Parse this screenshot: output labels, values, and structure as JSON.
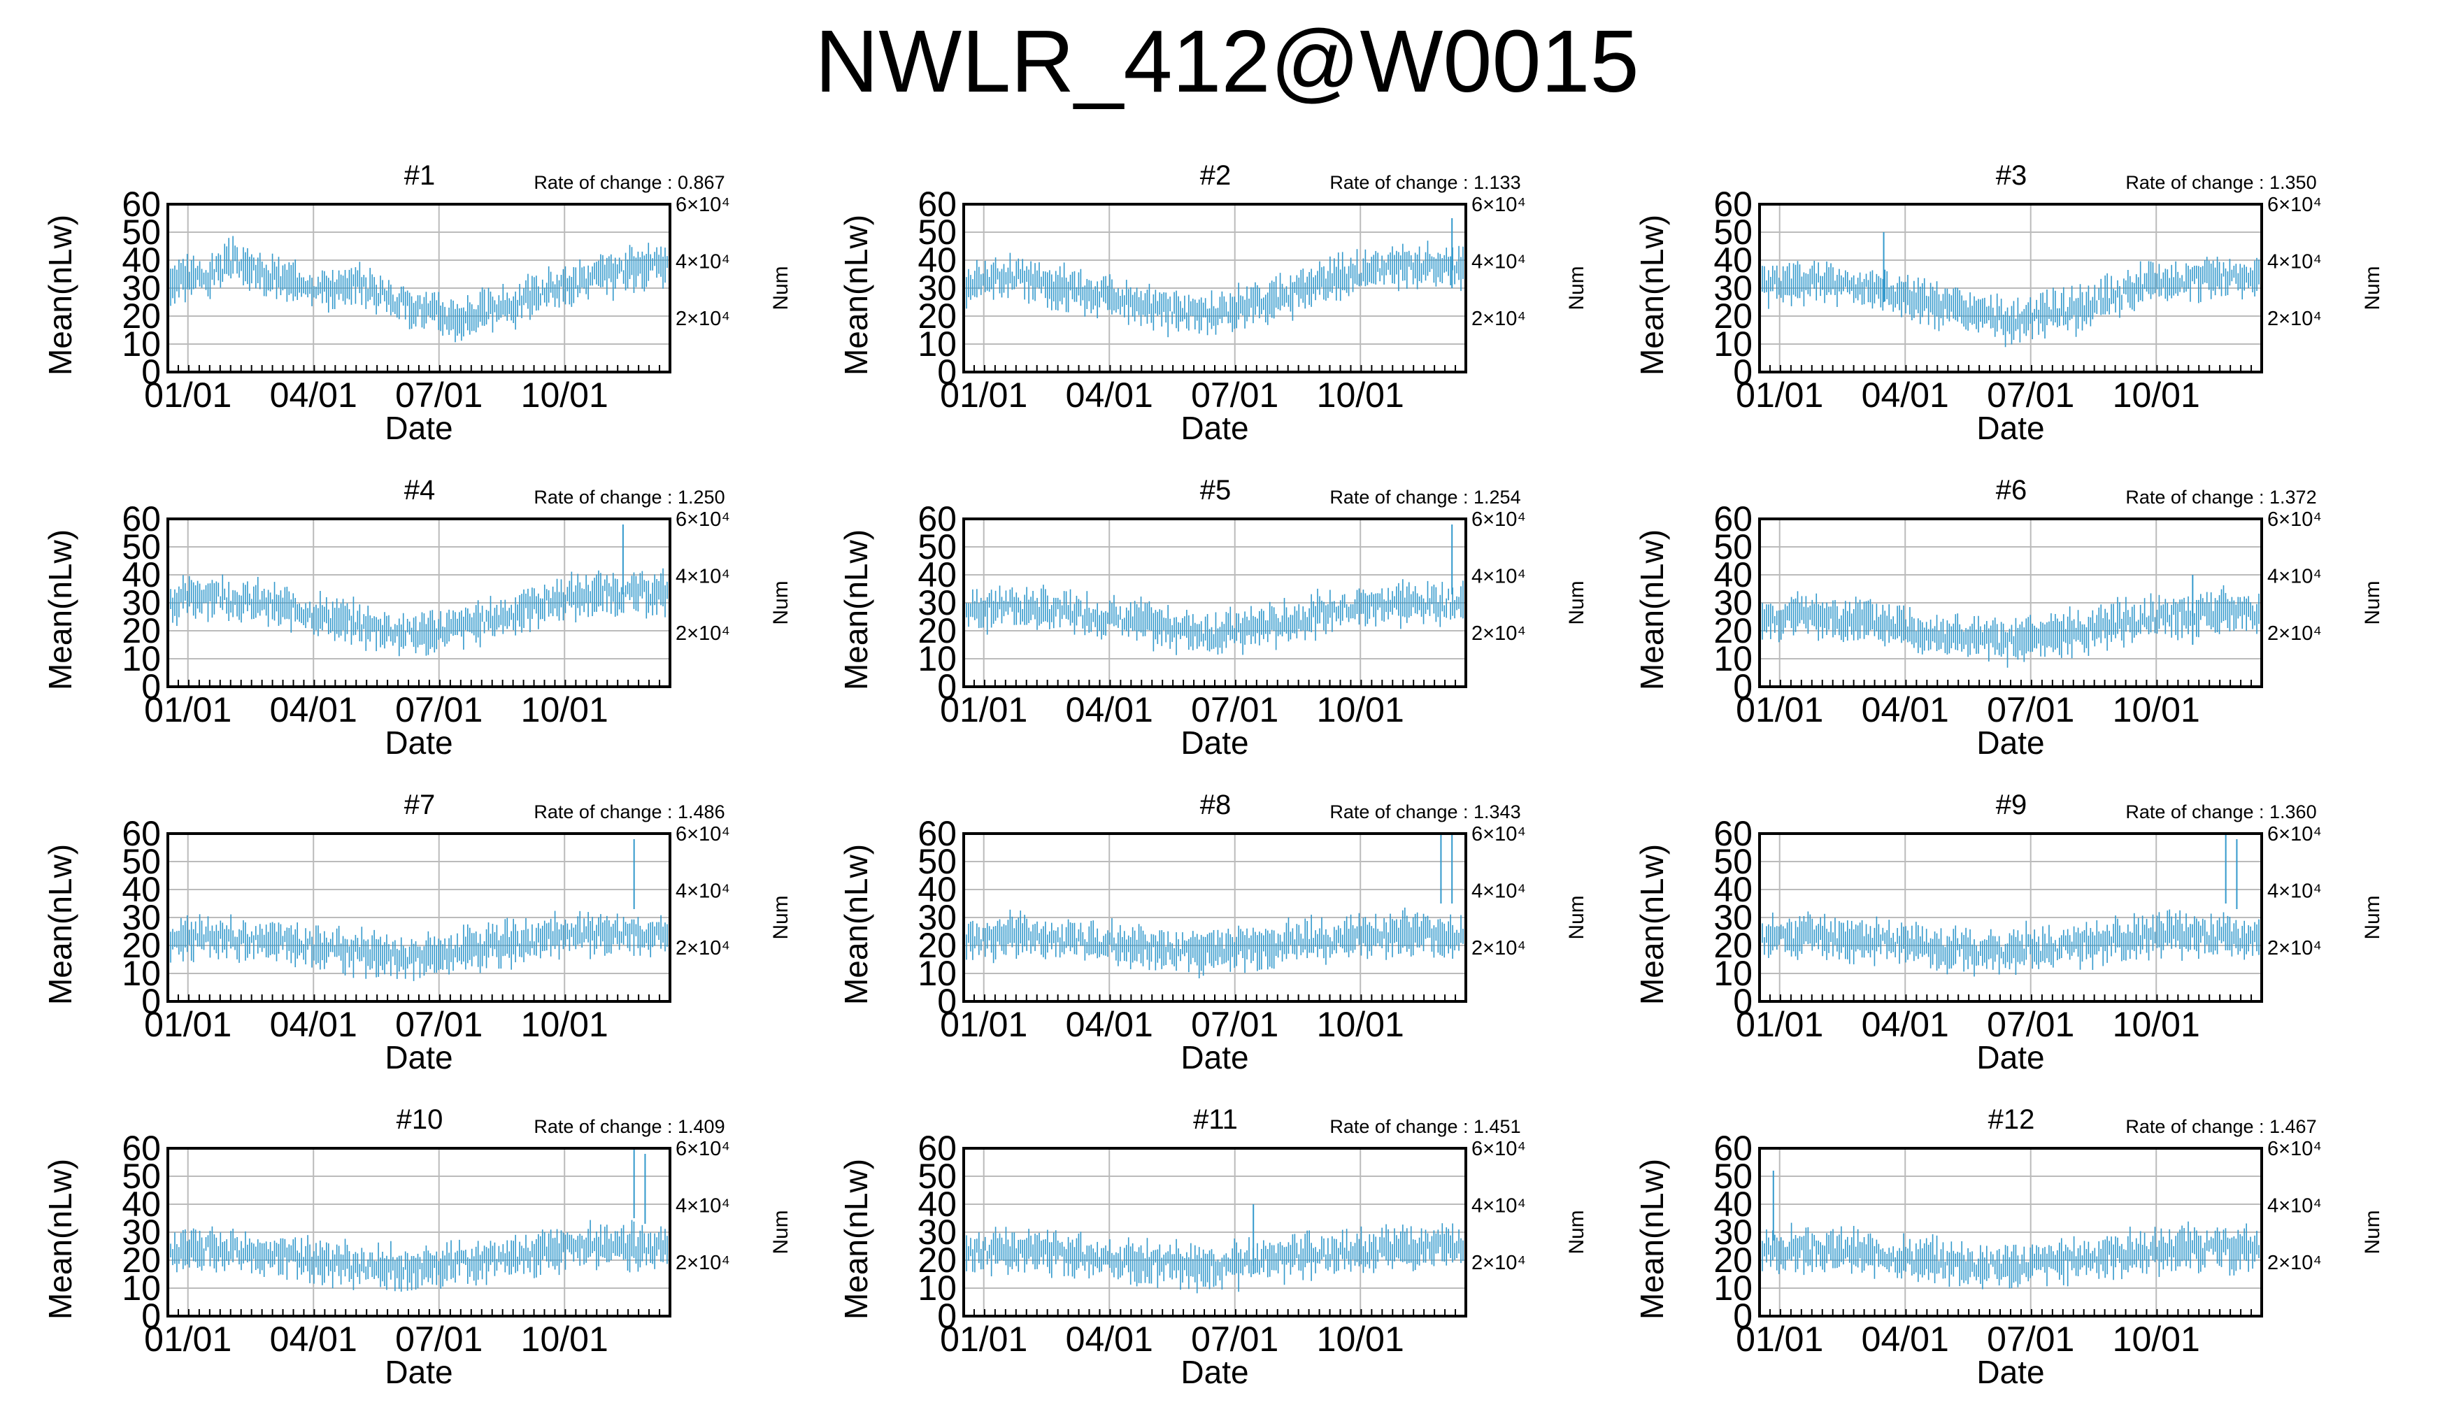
{
  "title": "NWLR_412@W0015",
  "colors": {
    "series": "#3399cc",
    "grid": "#bbbbbb",
    "axis": "#000000"
  },
  "chart_data": [
    {
      "type": "line",
      "title": "#1",
      "rate_label": "Rate of change : 0.867",
      "xlabel": "Date",
      "ylabel": "Mean(nLw)",
      "y2label": "Num",
      "x_ticks": [
        "01/01",
        "04/01",
        "07/01",
        "10/01"
      ],
      "y_ticks": [
        "0",
        "10",
        "20",
        "30",
        "40",
        "50",
        "60"
      ],
      "y2_ticks": [
        "2×10⁴",
        "4×10⁴",
        "6×10⁴"
      ],
      "ylim": [
        0,
        60
      ],
      "grid": true,
      "series": [
        {
          "values": [
            32,
            34,
            35,
            33,
            36,
            38,
            40,
            37,
            35,
            34,
            33,
            32,
            33,
            31,
            30,
            30,
            29,
            31,
            30,
            28,
            26,
            25,
            24,
            22,
            21,
            20,
            19,
            20,
            21,
            22,
            23,
            24,
            26,
            27,
            29,
            30,
            31,
            32,
            33,
            34,
            35,
            36,
            37,
            36,
            38,
            37
          ],
          "spikes": []
        }
      ]
    },
    {
      "type": "line",
      "title": "#2",
      "rate_label": "Rate of change : 1.133",
      "xlabel": "Date",
      "ylabel": "Mean(nLw)",
      "y2label": "Num",
      "x_ticks": [
        "01/01",
        "04/01",
        "07/01",
        "10/01"
      ],
      "y_ticks": [
        "0",
        "10",
        "20",
        "30",
        "40",
        "50",
        "60"
      ],
      "y2_ticks": [
        "2×10⁴",
        "4×10⁴",
        "6×10⁴"
      ],
      "ylim": [
        0,
        60
      ],
      "grid": true,
      "series": [
        {
          "values": [
            31,
            32,
            33,
            34,
            35,
            34,
            33,
            32,
            31,
            30,
            29,
            28,
            28,
            27,
            26,
            25,
            24,
            23,
            22,
            22,
            21,
            20,
            20,
            21,
            22,
            23,
            24,
            25,
            26,
            27,
            29,
            30,
            31,
            33,
            34,
            35,
            36,
            36,
            37,
            37,
            38,
            37,
            38,
            37,
            38,
            37
          ],
          "spikes": [
            {
              "i": 44,
              "v": 55
            }
          ]
        }
      ]
    },
    {
      "type": "line",
      "title": "#3",
      "rate_label": "Rate of change : 1.350",
      "xlabel": "Date",
      "ylabel": "Mean(nLw)",
      "y2label": "Num",
      "x_ticks": [
        "01/01",
        "04/01",
        "07/01",
        "10/01"
      ],
      "y_ticks": [
        "0",
        "10",
        "20",
        "30",
        "40",
        "50",
        "60"
      ],
      "y2_ticks": [
        "2×10⁴",
        "4×10⁴",
        "6×10⁴"
      ],
      "ylim": [
        0,
        60
      ],
      "grid": true,
      "series": [
        {
          "values": [
            31,
            32,
            30,
            31,
            32,
            33,
            32,
            31,
            30,
            31,
            30,
            29,
            28,
            27,
            26,
            25,
            24,
            23,
            22,
            21,
            20,
            19,
            18,
            18,
            19,
            20,
            21,
            22,
            22,
            23,
            24,
            26,
            27,
            28,
            30,
            31,
            32,
            32,
            33,
            33,
            34,
            33,
            34,
            34,
            35,
            34
          ],
          "spikes": [
            {
              "i": 11,
              "v": 50
            }
          ]
        }
      ]
    },
    {
      "type": "line",
      "title": "#4",
      "rate_label": "Rate of change : 1.250",
      "xlabel": "Date",
      "ylabel": "Mean(nLw)",
      "y2label": "Num",
      "x_ticks": [
        "01/01",
        "04/01",
        "07/01",
        "10/01"
      ],
      "y_ticks": [
        "0",
        "10",
        "20",
        "30",
        "40",
        "50",
        "60"
      ],
      "y2_ticks": [
        "2×10⁴",
        "4×10⁴",
        "6×10⁴"
      ],
      "ylim": [
        0,
        60
      ],
      "grid": true,
      "series": [
        {
          "values": [
            30,
            31,
            32,
            33,
            33,
            32,
            31,
            30,
            30,
            29,
            28,
            28,
            27,
            26,
            25,
            24,
            23,
            22,
            21,
            21,
            20,
            19,
            19,
            19,
            20,
            20,
            21,
            22,
            23,
            24,
            25,
            26,
            28,
            29,
            30,
            31,
            32,
            32,
            33,
            33,
            34,
            33,
            33,
            34,
            33,
            33
          ],
          "spikes": [
            {
              "i": 41,
              "v": 58
            }
          ]
        }
      ]
    },
    {
      "type": "line",
      "title": "#5",
      "rate_label": "Rate of change : 1.254",
      "xlabel": "Date",
      "ylabel": "Mean(nLw)",
      "y2label": "Num",
      "x_ticks": [
        "01/01",
        "04/01",
        "07/01",
        "10/01"
      ],
      "y_ticks": [
        "0",
        "10",
        "20",
        "30",
        "40",
        "50",
        "60"
      ],
      "y2_ticks": [
        "2×10⁴",
        "4×10⁴",
        "6×10⁴"
      ],
      "ylim": [
        0,
        60
      ],
      "grid": true,
      "series": [
        {
          "values": [
            27,
            28,
            28,
            29,
            29,
            28,
            28,
            27,
            27,
            27,
            26,
            26,
            25,
            25,
            24,
            23,
            23,
            22,
            21,
            21,
            20,
            20,
            19,
            19,
            20,
            20,
            21,
            22,
            22,
            23,
            24,
            25,
            26,
            27,
            28,
            28,
            29,
            29,
            30,
            30,
            30,
            29,
            30,
            30,
            30,
            30
          ],
          "spikes": [
            {
              "i": 44,
              "v": 58
            }
          ]
        }
      ]
    },
    {
      "type": "line",
      "title": "#6",
      "rate_label": "Rate of change : 1.372",
      "xlabel": "Date",
      "ylabel": "Mean(nLw)",
      "y2label": "Num",
      "x_ticks": [
        "01/01",
        "04/01",
        "07/01",
        "10/01"
      ],
      "y_ticks": [
        "0",
        "10",
        "20",
        "30",
        "40",
        "50",
        "60"
      ],
      "y2_ticks": [
        "2×10⁴",
        "4×10⁴",
        "6×10⁴"
      ],
      "ylim": [
        0,
        60
      ],
      "grid": true,
      "series": [
        {
          "values": [
            24,
            24,
            25,
            25,
            26,
            25,
            25,
            24,
            24,
            23,
            23,
            22,
            22,
            21,
            20,
            19,
            19,
            18,
            18,
            17,
            17,
            16,
            16,
            16,
            17,
            17,
            18,
            19,
            19,
            20,
            21,
            22,
            23,
            23,
            24,
            25,
            25,
            26,
            26,
            26,
            27,
            27,
            27,
            27,
            27,
            27
          ],
          "spikes": [
            {
              "i": 39,
              "v": 40
            }
          ]
        }
      ]
    },
    {
      "type": "line",
      "title": "#7",
      "rate_label": "Rate of change : 1.486",
      "xlabel": "Date",
      "ylabel": "Mean(nLw)",
      "y2label": "Num",
      "x_ticks": [
        "01/01",
        "04/01",
        "07/01",
        "10/01"
      ],
      "y_ticks": [
        "0",
        "10",
        "20",
        "30",
        "40",
        "50",
        "60"
      ],
      "y2_ticks": [
        "2×10⁴",
        "4×10⁴",
        "6×10⁴"
      ],
      "ylim": [
        0,
        60
      ],
      "grid": true,
      "series": [
        {
          "values": [
            21,
            22,
            22,
            23,
            23,
            23,
            22,
            22,
            22,
            21,
            21,
            21,
            20,
            20,
            19,
            19,
            18,
            18,
            17,
            17,
            16,
            16,
            16,
            16,
            17,
            17,
            18,
            18,
            19,
            19,
            20,
            21,
            21,
            22,
            22,
            23,
            23,
            24,
            24,
            24,
            24,
            23,
            24,
            23,
            23,
            23
          ],
          "spikes": [
            {
              "i": 42,
              "v": 58
            }
          ]
        }
      ]
    },
    {
      "type": "line",
      "title": "#8",
      "rate_label": "Rate of change : 1.343",
      "xlabel": "Date",
      "ylabel": "Mean(nLw)",
      "y2label": "Num",
      "x_ticks": [
        "01/01",
        "04/01",
        "07/01",
        "10/01"
      ],
      "y_ticks": [
        "0",
        "10",
        "20",
        "30",
        "40",
        "50",
        "60"
      ],
      "y2_ticks": [
        "2×10⁴",
        "4×10⁴",
        "6×10⁴"
      ],
      "ylim": [
        0,
        60
      ],
      "grid": true,
      "series": [
        {
          "values": [
            22,
            22,
            23,
            23,
            24,
            24,
            23,
            23,
            22,
            22,
            22,
            21,
            21,
            21,
            20,
            20,
            19,
            19,
            19,
            18,
            18,
            18,
            18,
            18,
            19,
            19,
            19,
            20,
            20,
            21,
            21,
            22,
            22,
            22,
            23,
            23,
            23,
            24,
            24,
            24,
            24,
            23,
            24,
            23,
            23,
            23
          ],
          "spikes": [
            {
              "i": 43,
              "v": 60
            },
            {
              "i": 44,
              "v": 60
            }
          ]
        }
      ]
    },
    {
      "type": "line",
      "title": "#9",
      "rate_label": "Rate of change : 1.360",
      "xlabel": "Date",
      "ylabel": "Mean(nLw)",
      "y2label": "Num",
      "x_ticks": [
        "01/01",
        "04/01",
        "07/01",
        "10/01"
      ],
      "y_ticks": [
        "0",
        "10",
        "20",
        "30",
        "40",
        "50",
        "60"
      ],
      "y2_ticks": [
        "2×10⁴",
        "4×10⁴",
        "6×10⁴"
      ],
      "ylim": [
        0,
        60
      ],
      "grid": true,
      "series": [
        {
          "values": [
            22,
            23,
            23,
            23,
            24,
            24,
            23,
            23,
            22,
            22,
            22,
            21,
            21,
            21,
            20,
            20,
            19,
            19,
            19,
            18,
            18,
            18,
            18,
            18,
            19,
            19,
            19,
            20,
            20,
            21,
            21,
            22,
            22,
            22,
            23,
            23,
            23,
            24,
            24,
            24,
            24,
            23,
            24,
            23,
            23,
            23
          ],
          "spikes": [
            {
              "i": 42,
              "v": 60
            },
            {
              "i": 43,
              "v": 58
            }
          ]
        }
      ]
    },
    {
      "type": "line",
      "title": "#10",
      "rate_label": "Rate of change : 1.409",
      "xlabel": "Date",
      "ylabel": "Mean(nLw)",
      "y2label": "Num",
      "x_ticks": [
        "01/01",
        "04/01",
        "07/01",
        "10/01"
      ],
      "y_ticks": [
        "0",
        "10",
        "20",
        "30",
        "40",
        "50",
        "60"
      ],
      "y2_ticks": [
        "2×10⁴",
        "4×10⁴",
        "6×10⁴"
      ],
      "ylim": [
        0,
        60
      ],
      "grid": true,
      "series": [
        {
          "values": [
            22,
            23,
            23,
            24,
            24,
            24,
            23,
            23,
            22,
            22,
            22,
            21,
            21,
            20,
            20,
            19,
            19,
            18,
            18,
            18,
            17,
            17,
            17,
            17,
            18,
            18,
            19,
            19,
            20,
            20,
            21,
            21,
            22,
            22,
            23,
            23,
            24,
            24,
            25,
            26,
            26,
            25,
            25,
            24,
            24,
            24
          ],
          "spikes": [
            {
              "i": 42,
              "v": 60
            },
            {
              "i": 43,
              "v": 58
            }
          ]
        }
      ]
    },
    {
      "type": "line",
      "title": "#11",
      "rate_label": "Rate of change : 1.451",
      "xlabel": "Date",
      "ylabel": "Mean(nLw)",
      "y2label": "Num",
      "x_ticks": [
        "01/01",
        "04/01",
        "07/01",
        "10/01"
      ],
      "y_ticks": [
        "0",
        "10",
        "20",
        "30",
        "40",
        "50",
        "60"
      ],
      "y2_ticks": [
        "2×10⁴",
        "4×10⁴",
        "6×10⁴"
      ],
      "ylim": [
        0,
        60
      ],
      "grid": true,
      "series": [
        {
          "values": [
            22,
            23,
            23,
            24,
            24,
            24,
            23,
            23,
            23,
            22,
            22,
            22,
            21,
            21,
            20,
            20,
            19,
            19,
            19,
            18,
            18,
            18,
            18,
            18,
            18,
            19,
            19,
            20,
            20,
            21,
            21,
            22,
            22,
            22,
            23,
            23,
            23,
            24,
            24,
            24,
            24,
            24,
            24,
            24,
            24,
            24
          ],
          "spikes": [
            {
              "i": 26,
              "v": 40
            }
          ]
        }
      ]
    },
    {
      "type": "line",
      "title": "#12",
      "rate_label": "Rate of change : 1.467",
      "xlabel": "Date",
      "ylabel": "Mean(nLw)",
      "y2label": "Num",
      "x_ticks": [
        "01/01",
        "04/01",
        "07/01",
        "10/01"
      ],
      "y_ticks": [
        "0",
        "10",
        "20",
        "30",
        "40",
        "50",
        "60"
      ],
      "y2_ticks": [
        "2×10⁴",
        "4×10⁴",
        "6×10⁴"
      ],
      "ylim": [
        0,
        60
      ],
      "grid": true,
      "series": [
        {
          "values": [
            22,
            23,
            23,
            24,
            24,
            24,
            23,
            23,
            23,
            22,
            22,
            22,
            21,
            21,
            20,
            20,
            19,
            19,
            19,
            18,
            18,
            18,
            18,
            18,
            18,
            19,
            19,
            20,
            20,
            21,
            21,
            22,
            22,
            22,
            23,
            23,
            23,
            24,
            24,
            24,
            24,
            24,
            24,
            24,
            24,
            24
          ],
          "spikes": [
            {
              "i": 1,
              "v": 52
            }
          ]
        }
      ]
    }
  ]
}
